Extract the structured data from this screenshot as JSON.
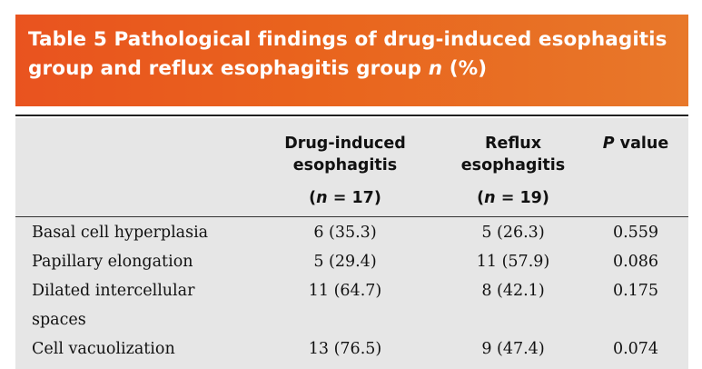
{
  "title": {
    "line1": "Table 5  Pathological findings of drug-induced esophagitis",
    "line2_prefix": "group and reflux esophagitis group ",
    "line2_n": "n",
    "line2_suffix": " (%)"
  },
  "header": {
    "col1_line1": "Drug-induced",
    "col1_line2": "esophagitis",
    "col1_n_open": "(",
    "col1_n_var": "n",
    "col1_n_rest": " = 17)",
    "col2_line1": "Reflux",
    "col2_line2": "esophagitis",
    "col2_n_open": "(",
    "col2_n_var": "n",
    "col2_n_rest": " = 19)",
    "col3_var": "P",
    "col3_rest": " value"
  },
  "rows": [
    {
      "label": "Basal cell hyperplasia",
      "drug": "6 (35.3)",
      "reflux": "5 (26.3)",
      "p": "0.559"
    },
    {
      "label": "Papillary elongation",
      "drug": "5 (29.4)",
      "reflux": "11 (57.9)",
      "p": "0.086"
    },
    {
      "label": "Dilated intercellular",
      "label_line2": "spaces",
      "drug": "11 (64.7)",
      "reflux": "8 (42.1)",
      "p": "0.175"
    },
    {
      "label": "Cell vacuolization",
      "drug": "13 (76.5)",
      "reflux": "9 (47.4)",
      "p": "0.074"
    }
  ],
  "colors": {
    "banner_start": "#e9531f",
    "banner_end": "#e8782a",
    "table_background": "#e6e6e6"
  }
}
